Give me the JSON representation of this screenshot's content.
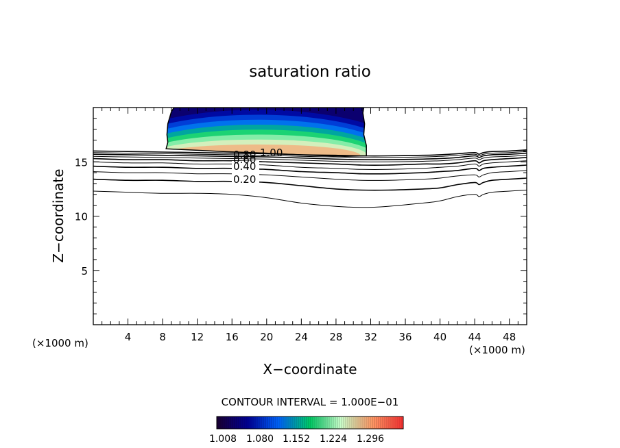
{
  "chart_data": {
    "type": "contour",
    "title": "saturation ratio",
    "xlabel": "X−coordinate",
    "ylabel": "Z−coordinate",
    "x_unit_left": "(×1000 m)",
    "x_unit_right": "(×1000 m)",
    "xlim": [
      0,
      50
    ],
    "ylim": [
      0,
      20
    ],
    "x_ticks": [
      4,
      8,
      12,
      16,
      20,
      24,
      28,
      32,
      36,
      40,
      44,
      48
    ],
    "y_ticks": [
      5,
      10,
      15
    ],
    "contour_interval_label": "CONTOUR INTERVAL = 1.000E−01",
    "contour_labels": [
      "0.20",
      "0.40",
      "0.60",
      "0.80",
      "1.00"
    ],
    "contours": [
      {
        "level": 0.1,
        "x": [
          0,
          4,
          8,
          12,
          16,
          20,
          24,
          28,
          31,
          34,
          38,
          40,
          42,
          44,
          44.5,
          45,
          46,
          48,
          50
        ],
        "y": [
          12.3,
          12.2,
          12.1,
          12.1,
          12.0,
          11.7,
          11.2,
          10.9,
          10.8,
          10.9,
          11.2,
          11.4,
          11.8,
          12.0,
          11.8,
          12.0,
          12.2,
          12.3,
          12.4
        ]
      },
      {
        "level": 0.2,
        "x": [
          0,
          4,
          8,
          12,
          16,
          20,
          24,
          28,
          31,
          34,
          38,
          40,
          42,
          44,
          44.5,
          45,
          46,
          48,
          50
        ],
        "y": [
          13.4,
          13.3,
          13.3,
          13.2,
          13.2,
          13.1,
          12.8,
          12.5,
          12.4,
          12.4,
          12.5,
          12.6,
          12.9,
          13.1,
          12.9,
          13.1,
          13.3,
          13.4,
          13.5
        ]
      },
      {
        "level": 0.3,
        "x": [
          0,
          4,
          8,
          12,
          16,
          20,
          24,
          28,
          31,
          34,
          38,
          40,
          42,
          44,
          44.5,
          45,
          46,
          48,
          50
        ],
        "y": [
          14.1,
          14.0,
          14.0,
          13.9,
          13.9,
          13.8,
          13.6,
          13.4,
          13.3,
          13.3,
          13.4,
          13.5,
          13.7,
          13.8,
          13.6,
          13.8,
          14.0,
          14.1,
          14.2
        ]
      },
      {
        "level": 0.4,
        "x": [
          0,
          4,
          8,
          12,
          16,
          20,
          24,
          28,
          31,
          34,
          38,
          40,
          42,
          44,
          44.5,
          45,
          46,
          48,
          50
        ],
        "y": [
          14.6,
          14.5,
          14.5,
          14.4,
          14.4,
          14.3,
          14.1,
          14.0,
          13.9,
          13.9,
          14.0,
          14.1,
          14.2,
          14.4,
          14.2,
          14.4,
          14.5,
          14.6,
          14.7
        ]
      },
      {
        "level": 0.5,
        "x": [
          0,
          4,
          8,
          12,
          16,
          20,
          24,
          28,
          31,
          34,
          38,
          40,
          42,
          44,
          44.5,
          45,
          46,
          48,
          50
        ],
        "y": [
          15.0,
          14.9,
          14.9,
          14.8,
          14.8,
          14.7,
          14.5,
          14.4,
          14.3,
          14.3,
          14.4,
          14.5,
          14.6,
          14.8,
          14.6,
          14.8,
          14.9,
          15.0,
          15.1
        ]
      },
      {
        "level": 0.6,
        "x": [
          0,
          4,
          8,
          12,
          16,
          20,
          24,
          28,
          31,
          34,
          38,
          40,
          42,
          44,
          44.5,
          45,
          46,
          48,
          50
        ],
        "y": [
          15.3,
          15.2,
          15.2,
          15.1,
          15.1,
          15.0,
          14.9,
          14.8,
          14.7,
          14.7,
          14.8,
          14.8,
          14.9,
          15.1,
          14.9,
          15.1,
          15.2,
          15.3,
          15.4
        ]
      },
      {
        "level": 0.7,
        "x": [
          0,
          4,
          8,
          12,
          16,
          20,
          24,
          28,
          31,
          34,
          38,
          40,
          42,
          44,
          44.5,
          45,
          46,
          48,
          50
        ],
        "y": [
          15.5,
          15.45,
          15.4,
          15.35,
          15.3,
          15.25,
          15.15,
          15.05,
          15.0,
          15.0,
          15.05,
          15.1,
          15.2,
          15.35,
          15.2,
          15.35,
          15.45,
          15.5,
          15.6
        ]
      },
      {
        "level": 0.8,
        "x": [
          0,
          4,
          8,
          12,
          16,
          20,
          24,
          28,
          31,
          34,
          38,
          40,
          42,
          44,
          44.5,
          45,
          46,
          48,
          50
        ],
        "y": [
          15.7,
          15.65,
          15.6,
          15.55,
          15.5,
          15.45,
          15.35,
          15.25,
          15.2,
          15.2,
          15.25,
          15.3,
          15.4,
          15.55,
          15.4,
          15.55,
          15.65,
          15.7,
          15.8
        ]
      },
      {
        "level": 0.9,
        "x": [
          0,
          4,
          8,
          12,
          16,
          20,
          24,
          28,
          31,
          34,
          38,
          40,
          42,
          44,
          44.5,
          45,
          46,
          48,
          50
        ],
        "y": [
          15.85,
          15.8,
          15.75,
          15.7,
          15.65,
          15.6,
          15.5,
          15.45,
          15.4,
          15.4,
          15.45,
          15.5,
          15.6,
          15.7,
          15.55,
          15.7,
          15.8,
          15.85,
          15.95
        ]
      },
      {
        "level": 1.0,
        "x": [
          0,
          4,
          8,
          12,
          16,
          20,
          24,
          28,
          31,
          34,
          38,
          40,
          42,
          44,
          44.5,
          45,
          46,
          48,
          50
        ],
        "y": [
          16.0,
          15.95,
          15.9,
          15.85,
          15.8,
          15.75,
          15.65,
          15.6,
          15.55,
          15.55,
          15.6,
          15.65,
          15.75,
          15.85,
          15.7,
          15.85,
          15.95,
          16.0,
          16.1
        ]
      }
    ],
    "supersaturated_region": {
      "boundary_x": [
        9.3,
        9.0,
        8.6,
        8.5,
        8.6,
        8.4,
        11,
        15,
        20,
        25,
        29,
        31.5,
        31.5,
        31.2,
        31.3,
        31.1,
        31.2
      ],
      "boundary_y": [
        20,
        19.6,
        18.5,
        17.5,
        16.8,
        16.2,
        16.1,
        15.95,
        15.8,
        15.6,
        15.5,
        15.55,
        16.5,
        17.5,
        18.5,
        19.5,
        20
      ],
      "center_x": 19,
      "surface_z": 15.7,
      "ratio_top": 1.04,
      "ratio_base": 1.26
    },
    "colorbar": {
      "ticks": [
        "1.008",
        "1.080",
        "1.152",
        "1.224",
        "1.296"
      ],
      "min": 1.008,
      "max": 1.332,
      "stops": [
        "#1a0033",
        "#000099",
        "#0066ff",
        "#00cc66",
        "#ccffcc",
        "#ff9966",
        "#ff3333"
      ]
    },
    "grid": false
  }
}
